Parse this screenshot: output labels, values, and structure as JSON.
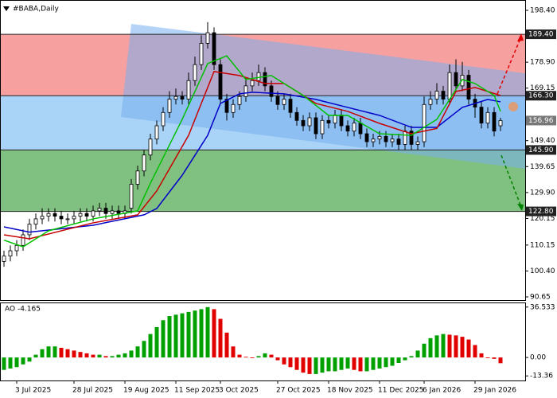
{
  "chart_data": {
    "type": "candlestick",
    "title": "#BABA,Daily",
    "categories": [
      null,
      null,
      "3 Jul 2025",
      null,
      null,
      null,
      null,
      null,
      null,
      null,
      null,
      "28 Jul 2025",
      null,
      null,
      null,
      null,
      null,
      null,
      null,
      "19 Aug 2025",
      null,
      null,
      null,
      null,
      null,
      null,
      null,
      "11 Sep 2025",
      null,
      null,
      null,
      null,
      null,
      null,
      "3 Oct 2025",
      null,
      null,
      null,
      null,
      null,
      null,
      null,
      null,
      "27 Oct 2025",
      null,
      null,
      null,
      null,
      null,
      null,
      null,
      "18 Nov 2025",
      null,
      null,
      null,
      null,
      null,
      null,
      null,
      "11 Dec 2025",
      null,
      null,
      null,
      null,
      null,
      null,
      "6 Jan 2026",
      null,
      null,
      null,
      null,
      null,
      null,
      null,
      "29 Jan 2026",
      null,
      null,
      null,
      null
    ],
    "open": [
      104,
      106,
      108,
      110,
      114,
      118,
      120,
      121,
      122,
      121,
      120,
      120,
      121,
      122,
      121,
      123,
      124,
      122,
      123,
      122,
      124,
      133,
      138,
      144,
      150,
      155,
      160,
      165,
      166,
      165,
      172,
      178,
      186,
      190,
      178,
      165,
      160,
      163,
      166,
      170,
      172,
      175,
      170,
      166,
      163,
      165,
      160,
      157,
      155,
      158,
      152,
      157,
      156,
      159,
      155,
      153,
      156,
      152,
      149,
      150,
      151,
      149,
      150,
      148,
      153,
      148,
      149,
      163,
      165,
      168,
      165,
      175,
      170,
      174,
      165,
      162,
      156,
      160,
      155
    ],
    "high": [
      108,
      110,
      112,
      116,
      120,
      122,
      124,
      124,
      124,
      123,
      122,
      123,
      124,
      124,
      125,
      126,
      126,
      125,
      125,
      125,
      135,
      140,
      146,
      152,
      157,
      162,
      168,
      169,
      168,
      175,
      181,
      189,
      194,
      192,
      180,
      167,
      165,
      168,
      173,
      175,
      178,
      177,
      172,
      168,
      167,
      167,
      162,
      159,
      160,
      160,
      159,
      159,
      161,
      161,
      157,
      158,
      158,
      154,
      152,
      153,
      153,
      152,
      152,
      155,
      155,
      151,
      166,
      168,
      171,
      170,
      178,
      180,
      179,
      176,
      167,
      164,
      162,
      162,
      158
    ],
    "low": [
      102,
      104,
      106,
      108,
      112,
      116,
      118,
      119,
      119,
      118,
      118,
      118,
      119,
      119,
      119,
      121,
      120,
      120,
      120,
      120,
      122,
      131,
      136,
      142,
      148,
      153,
      158,
      163,
      163,
      163,
      170,
      176,
      184,
      176,
      163,
      157,
      158,
      161,
      164,
      168,
      170,
      168,
      164,
      161,
      161,
      158,
      155,
      153,
      153,
      150,
      150,
      154,
      154,
      153,
      151,
      151,
      150,
      147,
      147,
      148,
      147,
      147,
      146,
      146,
      146,
      146,
      147,
      161,
      163,
      163,
      163,
      168,
      168,
      163,
      158,
      154,
      154,
      151,
      153
    ],
    "close": [
      106,
      108,
      110,
      114,
      118,
      120,
      121,
      122,
      121,
      120,
      120,
      121,
      122,
      121,
      123,
      124,
      122,
      123,
      122,
      123,
      133,
      138,
      144,
      150,
      155,
      160,
      165,
      166,
      165,
      172,
      178,
      186,
      190,
      178,
      165,
      160,
      163,
      166,
      170,
      172,
      175,
      170,
      166,
      163,
      165,
      160,
      157,
      155,
      158,
      152,
      157,
      156,
      159,
      155,
      153,
      156,
      152,
      149,
      150,
      151,
      149,
      150,
      148,
      153,
      148,
      149,
      163,
      165,
      168,
      165,
      175,
      170,
      174,
      165,
      162,
      156,
      160,
      153,
      156.96
    ],
    "up_color": "#ffffff",
    "down_color": "#000000",
    "series": [
      {
        "color": "#0000c8",
        "x": [
          0,
          4,
          14,
          22,
          24,
          28,
          32,
          34,
          37,
          39,
          44,
          49,
          54,
          59,
          64,
          68,
          72,
          76,
          78
        ],
        "values": [
          117,
          115,
          117.6,
          121.5,
          123.9,
          136.4,
          151.4,
          163.4,
          167,
          167.6,
          167,
          164.9,
          161.9,
          158.9,
          154.4,
          154.4,
          161.9,
          164.9,
          164
        ]
      },
      {
        "color": "#c80000",
        "x": [
          0,
          4,
          14,
          21,
          24,
          29,
          33,
          37,
          41,
          44,
          49,
          54,
          59,
          64,
          68,
          71,
          74,
          78
        ],
        "values": [
          114,
          112.5,
          118.5,
          121.5,
          130.5,
          151.4,
          175.4,
          173.9,
          170.9,
          170.9,
          163.4,
          160.4,
          155.9,
          152,
          154,
          167.9,
          169.4,
          166.4
        ]
      },
      {
        "color": "#00c000",
        "x": [
          0,
          3,
          7,
          14,
          21,
          23,
          28,
          32,
          35,
          38,
          42,
          47,
          51,
          54,
          59,
          64,
          68,
          72,
          74,
          77,
          78
        ],
        "values": [
          112,
          109.5,
          115.5,
          120,
          123,
          133.4,
          157.4,
          178.4,
          181.3,
          172.4,
          173.9,
          166.4,
          158.9,
          158.9,
          152,
          151.4,
          157.4,
          172.4,
          170.9,
          166.4,
          160.4
        ]
      }
    ],
    "ylim": [
      89.45,
      202.29
    ],
    "yticks": [
      {
        "value": 198.4,
        "label": "198.40"
      },
      {
        "value": 178.9,
        "label": "178.90"
      },
      169.15,
      {
        "value": 149.4,
        "label": "149.40"
      },
      139.65,
      {
        "value": 129.9,
        "label": "129.90"
      },
      120.15,
      110.15,
      {
        "value": 100.4,
        "label": "100.40"
      },
      90.65
    ],
    "levels": [
      {
        "value": 189.4,
        "label": "189.40"
      },
      {
        "value": 166.3,
        "label": "166.30"
      },
      {
        "value": 145.9,
        "label": "145.90"
      },
      {
        "value": 122.8,
        "label": "122.80"
      }
    ],
    "zone_colors": [
      "#f6a0a0",
      "#a9d3f7",
      "#80c080"
    ],
    "last_price": {
      "value": 156.96,
      "label": "156.96"
    },
    "ao": {
      "title": "AO -4.165",
      "up_color": "#00a000",
      "down_color": "#e00000",
      "values": [
        -9,
        -8,
        -7,
        -5,
        -3,
        2,
        6,
        8,
        8,
        7,
        6,
        5,
        4,
        3,
        2,
        2,
        1,
        1,
        2,
        3,
        5,
        8,
        12,
        17,
        22,
        27,
        30,
        31,
        32,
        33,
        34,
        35,
        36.5,
        35,
        28,
        18,
        8,
        2,
        0.5,
        -0.5,
        1,
        3,
        2,
        -2,
        -5,
        -7,
        -9,
        -11,
        -12,
        -12,
        -11,
        -10,
        -10,
        -9,
        -8,
        -9,
        -10,
        -10,
        -9,
        -8,
        -7,
        -6,
        -4,
        -2,
        1,
        5,
        10,
        14,
        16,
        17,
        16.5,
        16,
        15,
        13,
        9,
        3,
        -0.5,
        -1,
        -4.165
      ],
      "ylim": [
        -16.68,
        39.85
      ],
      "yticks": [
        36.533,
        {
          "value": 0,
          "label": "0.00"
        },
        -13.36
      ]
    }
  }
}
